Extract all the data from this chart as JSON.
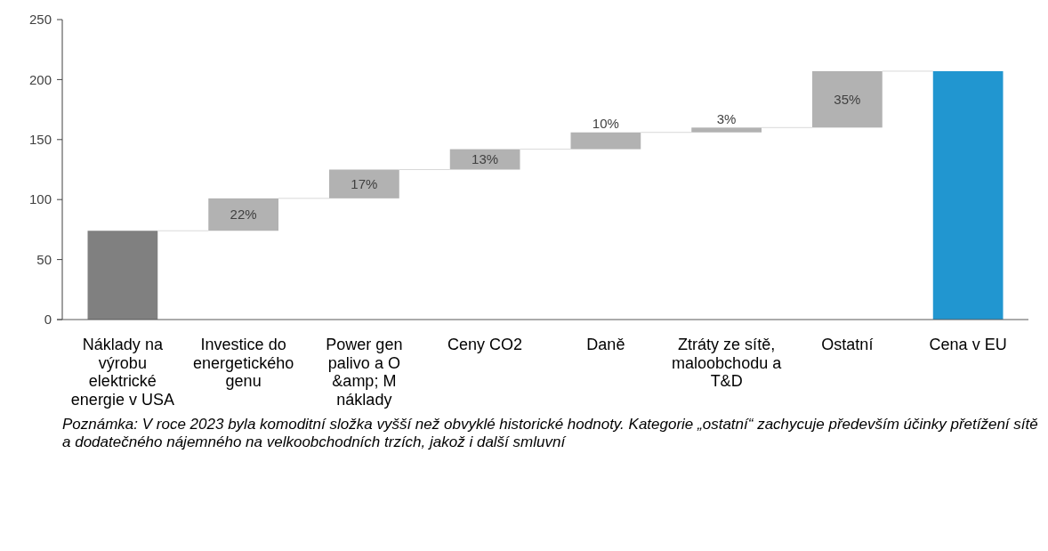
{
  "chart_data": {
    "type": "bar",
    "categories": [
      "Náklady na výrobu elektrické energie v USA",
      "Investice do energetického genu",
      "Power gen palivo a O &amp; M náklady",
      "Ceny CO2",
      "Daně",
      "Ztráty ze sítě, maloobchodu a T&D",
      "Ostatní",
      "Cena v EU"
    ],
    "values": [
      74,
      27,
      24,
      17,
      14,
      4,
      47,
      207
    ],
    "base": [
      0,
      74,
      101,
      125,
      142,
      156,
      160,
      0
    ],
    "colors": [
      "#808080",
      "#b2b2b2",
      "#b2b2b2",
      "#b2b2b2",
      "#b2b2b2",
      "#b2b2b2",
      "#b2b2b2",
      "#2196d0"
    ],
    "ylim": [
      0,
      250
    ],
    "yticks": [
      0,
      50,
      100,
      150,
      200,
      250
    ],
    "grid": false,
    "annotations": [
      {
        "text": "22%",
        "x": "Investice do energetického genu",
        "y": 101
      },
      {
        "text": "17%",
        "x": "Power gen palivo a O &amp; M náklady",
        "y": 125
      },
      {
        "text": "13%",
        "x": "Ceny CO2",
        "y": 142
      },
      {
        "text": "10%",
        "x": "Daně",
        "y": 156
      },
      {
        "text": "3%",
        "x": "Ztráty ze sítě, maloobchodu a T&D",
        "y": 160
      },
      {
        "text": "35%",
        "x": "Ostatní",
        "y": 207
      },
      "Poznámka: V roce 2023 byla komoditní složka vyšší než obvyklé historické hodnoty. Kategorie „ostatní“ zachycuje především účinky přetížení sítě a dodatečného nájemného na velkoobchodních trzích, jakož i další smluvní"
    ]
  }
}
